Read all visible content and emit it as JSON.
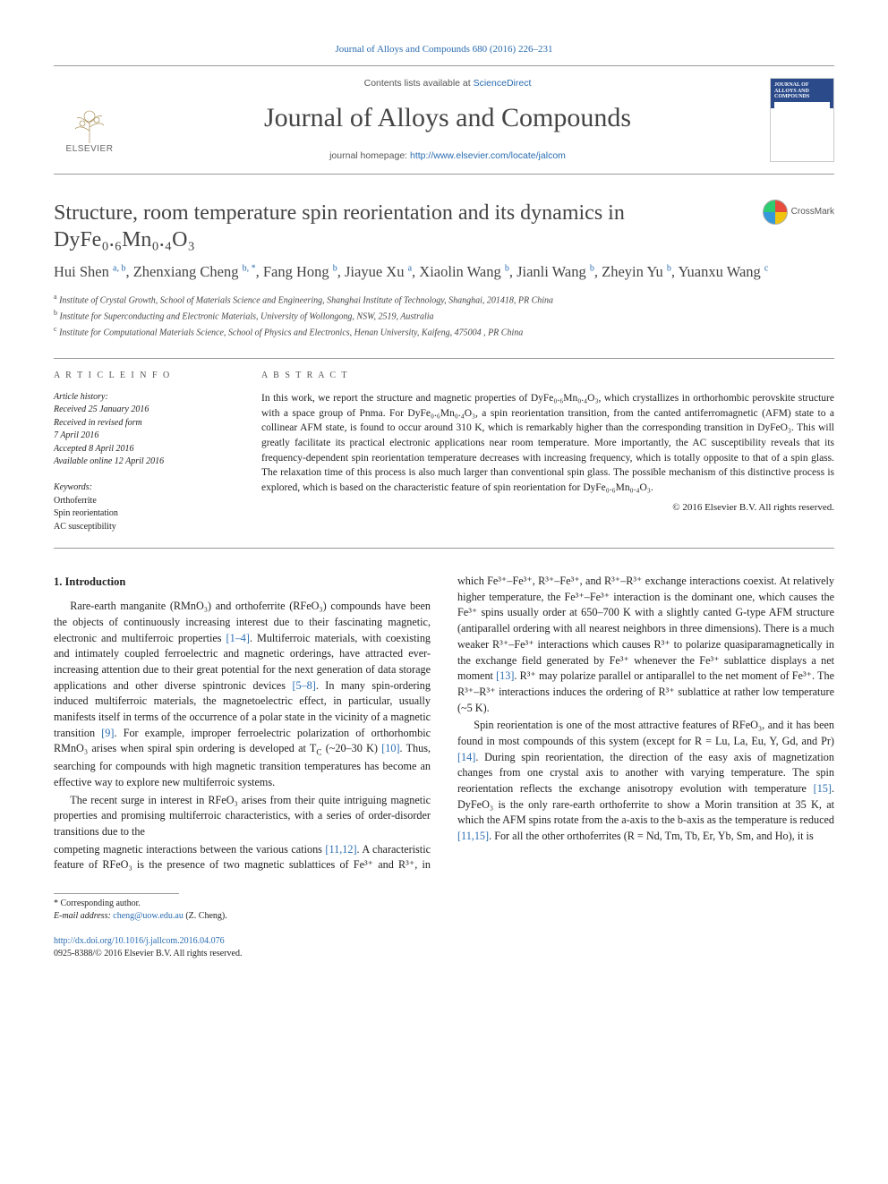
{
  "citation_line": "Journal of Alloys and Compounds 680 (2016) 226–231",
  "masthead": {
    "publisher": "ELSEVIER",
    "contents_prefix": "Contents lists available at ",
    "contents_link": "ScienceDirect",
    "journal_name": "Journal of Alloys and Compounds",
    "homepage_prefix": "journal homepage: ",
    "homepage_url": "http://www.elsevier.com/locate/jalcom",
    "cover_title": "JOURNAL OF ALLOYS AND COMPOUNDS"
  },
  "title": "Structure, room temperature spin reorientation and its dynamics in DyFe₀.₆Mn₀.₄O₃",
  "crossmark_label": "CrossMark",
  "authors_html": "Hui Shen <sup>a, b</sup>, Zhenxiang Cheng <sup>b, *</sup>, Fang Hong <sup>b</sup>, Jiayue Xu <sup>a</sup>, Xiaolin Wang <sup>b</sup>, Jianli Wang <sup>b</sup>, Zheyin Yu <sup>b</sup>, Yuanxu Wang <sup>c</sup>",
  "affiliations": {
    "a": "Institute of Crystal Growth, School of Materials Science and Engineering, Shanghai Institute of Technology, Shanghai, 201418, PR China",
    "b": "Institute for Superconducting and Electronic Materials, University of Wollongong, NSW, 2519, Australia",
    "c": "Institute for Computational Materials Science, School of Physics and Electronics, Henan University, Kaifeng, 475004 , PR China"
  },
  "article_info": {
    "heading": "A R T I C L E   I N F O",
    "history_label": "Article history:",
    "received": "Received 25 January 2016",
    "revised1": "Received in revised form",
    "revised2": "7 April 2016",
    "accepted": "Accepted 8 April 2016",
    "online": "Available online 12 April 2016",
    "keywords_label": "Keywords:",
    "keywords": [
      "Orthoferrite",
      "Spin reorientation",
      "AC susceptibility"
    ]
  },
  "abstract": {
    "heading": "A B S T R A C T",
    "text": "In this work, we report the structure and magnetic properties of DyFe₀.₆Mn₀.₄O₃, which crystallizes in orthorhombic perovskite structure with a space group of Pnma. For DyFe₀.₆Mn₀.₄O₃, a spin reorientation transition, from the canted antiferromagnetic (AFM) state to a collinear AFM state, is found to occur around 310 K, which is remarkably higher than the corresponding transition in DyFeO₃. This will greatly facilitate its practical electronic applications near room temperature. More importantly, the AC susceptibility reveals that its frequency-dependent spin reorientation temperature decreases with increasing frequency, which is totally opposite to that of a spin glass. The relaxation time of this process is also much larger than conventional spin glass. The possible mechanism of this distinctive process is explored, which is based on the characteristic feature of spin reorientation for DyFe₀.₆Mn₀.₄O₃.",
    "copyright": "© 2016 Elsevier B.V. All rights reserved."
  },
  "section1": {
    "heading": "1. Introduction",
    "p1_a": "Rare-earth manganite (RMnO₃) and orthoferrite (RFeO₃) compounds have been the objects of continuously increasing interest due to their fascinating magnetic, electronic and multiferroic properties ",
    "p1_ref1": "[1–4]",
    "p1_b": ". Multiferroic materials, with coexisting and intimately coupled ferroelectric and magnetic orderings, have attracted ever-increasing attention due to their great potential for the next generation of data storage applications and other diverse spintronic devices ",
    "p1_ref2": "[5–8]",
    "p1_c": ". In many spin-ordering induced multiferroic materials, the magnetoelectric effect, in particular, usually manifests itself in terms of the occurrence of a polar state in the vicinity of a magnetic transition ",
    "p1_ref3": "[9]",
    "p1_d": ". For example, improper ferroelectric polarization of orthorhombic RMnO₃ arises when spiral spin ordering is developed at T",
    "p1_sub": "C",
    "p1_e": " (~20–30 K) ",
    "p1_ref4": "[10]",
    "p1_f": ". Thus, searching for compounds with high magnetic transition temperatures has become an effective way to explore new multiferroic systems.",
    "p2": "The recent surge in interest in RFeO₃ arises from their quite intriguing magnetic properties and promising multiferroic characteristics, with a series of order-disorder transitions due to the",
    "p3_a": "competing magnetic interactions between the various cations ",
    "p3_ref1": "[11,12]",
    "p3_b": ". A characteristic feature of RFeO₃ is the presence of two magnetic sublattices of Fe³⁺ and R³⁺, in which Fe³⁺–Fe³⁺, R³⁺–Fe³⁺, and R³⁺–R³⁺ exchange interactions coexist. At relatively higher temperature, the Fe³⁺–Fe³⁺ interaction is the dominant one, which causes the Fe³⁺ spins usually order at 650–700 K with a slightly canted G-type AFM structure (antiparallel ordering with all nearest neighbors in three dimensions). There is a much weaker R³⁺–Fe³⁺ interactions which causes R³⁺ to polarize quasiparamagnetically in the exchange field generated by Fe³⁺ whenever the Fe³⁺ sublattice displays a net moment ",
    "p3_ref2": "[13]",
    "p3_c": ". R³⁺ may polarize parallel or antiparallel to the net moment of Fe³⁺. The R³⁺–R³⁺ interactions induces the ordering of R³⁺ sublattice at rather low temperature (~5 K).",
    "p4_a": "Spin reorientation is one of the most attractive features of RFeO₃, and it has been found in most compounds of this system (except for R = Lu, La, Eu, Y, Gd, and Pr) ",
    "p4_ref1": "[14]",
    "p4_b": ". During spin reorientation, the direction of the easy axis of magnetization changes from one crystal axis to another with varying temperature. The spin reorientation reflects the exchange anisotropy evolution with temperature ",
    "p4_ref2": "[15]",
    "p4_c": ". DyFeO₃ is the only rare-earth orthoferrite to show a Morin transition at 35 K, at which the AFM spins rotate from the a-axis to the b-axis as the temperature is reduced ",
    "p4_ref3": "[11,15]",
    "p4_d": ". For all the other orthoferrites (R = Nd, Tm, Tb, Er, Yb, Sm, and Ho), it is"
  },
  "corresponding": {
    "star": "* Corresponding author.",
    "email_label": "E-mail address: ",
    "email": "cheng@uow.edu.au",
    "name": " (Z. Cheng)."
  },
  "doi": {
    "url": "http://dx.doi.org/10.1016/j.jallcom.2016.04.076",
    "issn_line": "0925-8388/© 2016 Elsevier B.V. All rights reserved."
  },
  "colors": {
    "link": "#2a6cb0",
    "text": "#222",
    "rule": "#999999"
  }
}
